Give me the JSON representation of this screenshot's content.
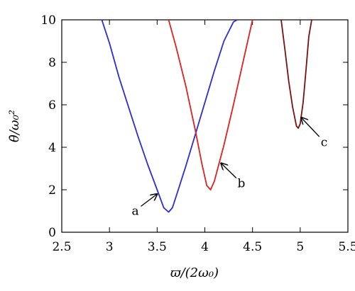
{
  "chart_data": {
    "type": "line",
    "xlabel": "ϖ/(2ω₀)",
    "ylabel": "θ̇/ω₀²",
    "xlim": [
      2.5,
      5.5
    ],
    "ylim": [
      0,
      10
    ],
    "xticks": [
      "2.5",
      "3",
      "3.5",
      "4",
      "4.5",
      "5",
      "5.5"
    ],
    "yticks": [
      "0",
      "2",
      "4",
      "6",
      "8",
      "10"
    ],
    "grid": false,
    "series": [
      {
        "color": "#2b2bd6",
        "x": [
          2.92,
          3.0,
          3.1,
          3.2,
          3.3,
          3.4,
          3.5,
          3.57,
          3.62,
          3.66,
          3.7,
          3.8,
          3.9,
          4.0,
          4.1,
          4.2,
          4.3,
          4.34
        ],
        "y": [
          10.0,
          8.9,
          7.3,
          5.9,
          4.5,
          3.2,
          2.0,
          1.15,
          0.95,
          1.15,
          1.7,
          3.1,
          4.6,
          6.1,
          7.6,
          9.0,
          9.9,
          10.0
        ]
      },
      {
        "color": "#dd2222",
        "x": [
          3.62,
          3.7,
          3.8,
          3.9,
          3.97,
          4.02,
          4.06,
          4.1,
          4.2,
          4.3,
          4.4,
          4.5
        ],
        "y": [
          10.0,
          8.7,
          6.9,
          4.8,
          3.2,
          2.2,
          2.0,
          2.4,
          4.1,
          6.0,
          8.0,
          10.0
        ]
      },
      {
        "color": "#7a1010",
        "x": [
          4.8,
          4.84,
          4.88,
          4.92,
          4.96,
          4.98,
          5.0,
          5.03,
          5.06,
          5.09,
          5.12
        ],
        "y": [
          10.0,
          8.6,
          7.1,
          5.9,
          5.0,
          4.9,
          5.1,
          6.1,
          7.6,
          9.2,
          10.0
        ]
      }
    ],
    "annotations": [
      {
        "label": "a",
        "arrow_from": [
          3.33,
          1.22
        ],
        "arrow_to": [
          3.5,
          1.8
        ]
      },
      {
        "label": "b",
        "arrow_from": [
          4.33,
          2.55
        ],
        "arrow_to": [
          4.17,
          3.25
        ]
      },
      {
        "label": "c",
        "arrow_from": [
          5.2,
          4.5
        ],
        "arrow_to": [
          5.01,
          5.4
        ]
      }
    ]
  }
}
